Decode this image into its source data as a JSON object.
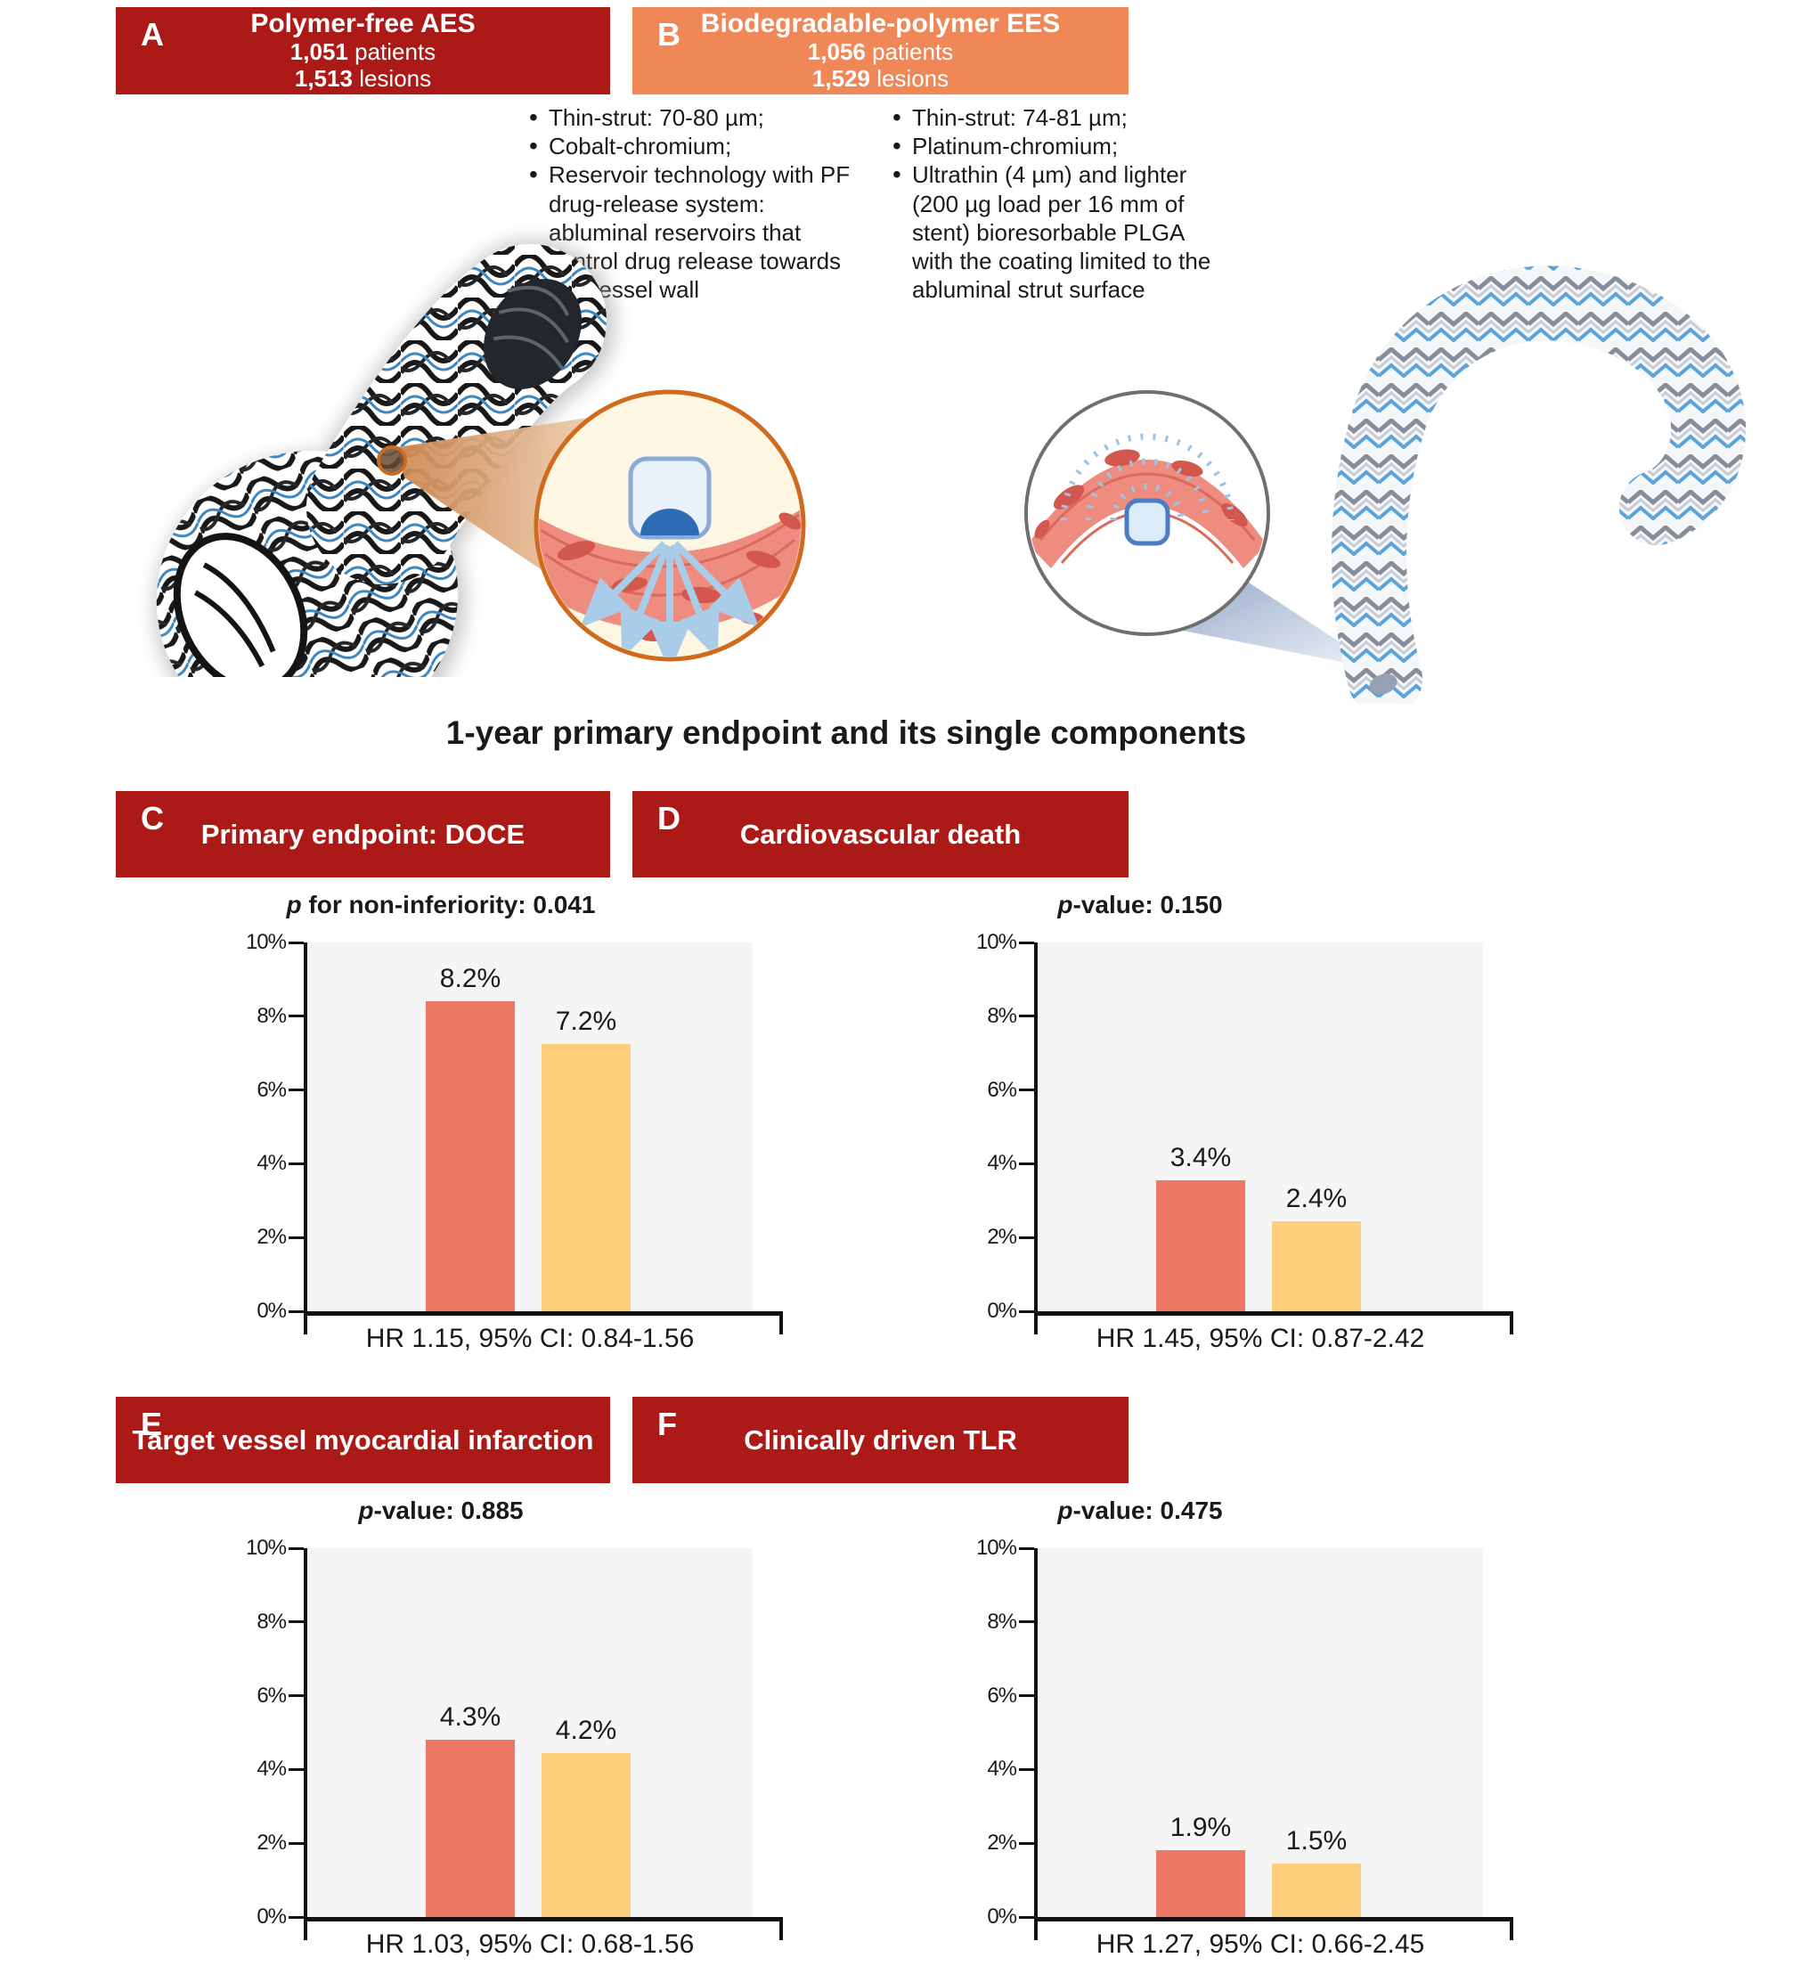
{
  "figure": {
    "section_title": "1-year primary endpoint and its single components"
  },
  "colors": {
    "dark_red": "#ab1a17",
    "orange": "#ef8757",
    "bar_aes_red": "#ed7765",
    "bar_ees_yellow": "#fcd07c",
    "plot_background": "#f5f5f6"
  },
  "devices": [
    {
      "letter": "A",
      "title": "Polymer-free AES",
      "patients_value": "1,051",
      "patients_word": "patients",
      "lesions_value": "1,513",
      "lesions_word": "lesions",
      "header_color": "#ab1a17",
      "bullets": [
        "Thin-strut: 70-80 µm;",
        "Cobalt-chromium;",
        "Reservoir technology with PF drug-release system: abluminal reservoirs that control drug release towards the vessel wall"
      ]
    },
    {
      "letter": "B",
      "title": "Biodegradable-polymer EES",
      "patients_value": "1,056",
      "patients_word": "patients",
      "lesions_value": "1,529",
      "lesions_word": "lesions",
      "header_color": "#ef8757",
      "bullets": [
        "Thin-strut: 74-81 µm;",
        "Platinum-chromium;",
        "Ultrathin (4 µm) and lighter (200 µg load per 16 mm of stent) bioresorbable PLGA with the coating limited to the abluminal strut surface"
      ]
    }
  ],
  "chart_data": [
    {
      "panel": "C",
      "type": "bar",
      "title": "Primary endpoint: DOCE",
      "subtitle_italic": "p",
      "subtitle_rest": " for non-inferiority: 0.041",
      "categories": [
        "Polymer-free AES",
        "Biodegradable-polymer EES"
      ],
      "values": [
        8.2,
        7.2
      ],
      "value_labels": [
        "8.2%",
        "7.2%"
      ],
      "drawn_values": [
        8.4,
        7.25
      ],
      "footer": "HR 1.15, 95% CI: 0.84-1.56",
      "ylim": [
        0,
        10
      ],
      "y_ticks": [
        "0%",
        "2%",
        "4%",
        "6%",
        "8%",
        "10%"
      ],
      "bar_colors": [
        "#ed7765",
        "#fcd07c"
      ],
      "grid": false,
      "legend": "none"
    },
    {
      "panel": "D",
      "type": "bar",
      "title": "Cardiovascular death",
      "subtitle_italic": "p",
      "subtitle_rest": "-value: 0.150",
      "categories": [
        "Polymer-free AES",
        "Biodegradable-polymer EES"
      ],
      "values": [
        3.4,
        2.4
      ],
      "value_labels": [
        "3.4%",
        "2.4%"
      ],
      "drawn_values": [
        3.55,
        2.45
      ],
      "footer": "HR 1.45, 95% CI: 0.87-2.42",
      "ylim": [
        0,
        10
      ],
      "y_ticks": [
        "0%",
        "2%",
        "4%",
        "6%",
        "8%",
        "10%"
      ],
      "bar_colors": [
        "#ed7765",
        "#fcd07c"
      ],
      "grid": false,
      "legend": "none"
    },
    {
      "panel": "E",
      "type": "bar",
      "title": "Target vessel myocardial infarction",
      "subtitle_italic": "p",
      "subtitle_rest": "-value: 0.885",
      "categories": [
        "Polymer-free AES",
        "Biodegradable-polymer EES"
      ],
      "values": [
        4.3,
        4.2
      ],
      "value_labels": [
        "4.3%",
        "4.2%"
      ],
      "drawn_values": [
        4.8,
        4.45
      ],
      "footer": "HR 1.03, 95% CI: 0.68-1.56",
      "ylim": [
        0,
        10
      ],
      "y_ticks": [
        "0%",
        "2%",
        "4%",
        "6%",
        "8%",
        "10%"
      ],
      "bar_colors": [
        "#ed7765",
        "#fcd07c"
      ],
      "grid": false,
      "legend": "none"
    },
    {
      "panel": "F",
      "type": "bar",
      "title": "Clinically driven TLR",
      "subtitle_italic": "p",
      "subtitle_rest": "-value: 0.475",
      "categories": [
        "Polymer-free AES",
        "Biodegradable-polymer EES"
      ],
      "values": [
        1.9,
        1.5
      ],
      "value_labels": [
        "1.9%",
        "1.5%"
      ],
      "drawn_values": [
        1.8,
        1.45
      ],
      "footer": "HR 1.27, 95% CI: 0.66-2.45",
      "ylim": [
        0,
        10
      ],
      "y_ticks": [
        "0%",
        "2%",
        "4%",
        "6%",
        "8%",
        "10%"
      ],
      "bar_colors": [
        "#ed7765",
        "#fcd07c"
      ],
      "grid": false,
      "legend": "none"
    }
  ]
}
